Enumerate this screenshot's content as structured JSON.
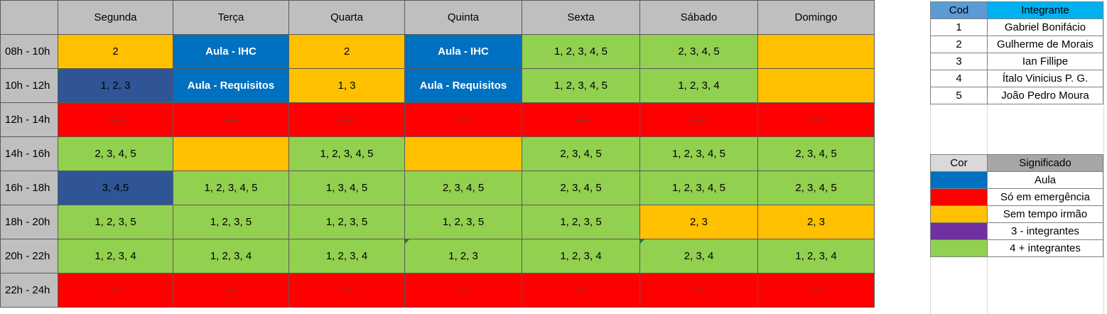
{
  "colors": {
    "header": "#bfbfbf",
    "aula": "#0070c0",
    "emergencia": "#ff0000",
    "sem_tempo": "#ffc000",
    "tres": "#7030a0",
    "quatro_mais": "#92d050",
    "dark_blue": "#2f5597"
  },
  "days": [
    "Segunda",
    "Terça",
    "Quarta",
    "Quinta",
    "Sexta",
    "Sábado",
    "Domingo"
  ],
  "rows": [
    {
      "time": "08h - 10h",
      "cells": [
        {
          "text": "2",
          "color": "#ffc000"
        },
        {
          "text": "Aula - IHC",
          "color": "#0070c0",
          "bold": true
        },
        {
          "text": "2",
          "color": "#ffc000"
        },
        {
          "text": "Aula - IHC",
          "color": "#0070c0",
          "bold": true
        },
        {
          "text": "1, 2, 3, 4, 5",
          "color": "#92d050"
        },
        {
          "text": "2, 3, 4, 5",
          "color": "#92d050"
        },
        {
          "text": "",
          "color": "#ffc000"
        }
      ]
    },
    {
      "time": "10h - 12h",
      "cells": [
        {
          "text": "1, 2, 3",
          "color": "#2f5597",
          "mark": true
        },
        {
          "text": "Aula - Requisitos",
          "color": "#0070c0",
          "bold": true
        },
        {
          "text": "1, 3",
          "color": "#ffc000"
        },
        {
          "text": "Aula - Requisitos",
          "color": "#0070c0",
          "bold": true
        },
        {
          "text": "1, 2, 3, 4, 5",
          "color": "#92d050"
        },
        {
          "text": "1, 2, 3, 4",
          "color": "#92d050"
        },
        {
          "text": "",
          "color": "#ffc000"
        }
      ]
    },
    {
      "time": "12h - 14h",
      "cells": [
        {
          "text": "---------",
          "color": "#ff0000",
          "dash": true
        },
        {
          "text": "---------",
          "color": "#ff0000",
          "dash": true
        },
        {
          "text": "---------",
          "color": "#ff0000",
          "dash": true
        },
        {
          "text": "---------",
          "color": "#ff0000",
          "dash": true
        },
        {
          "text": "---------",
          "color": "#ff0000",
          "dash": true
        },
        {
          "text": "---------",
          "color": "#ff0000",
          "dash": true
        },
        {
          "text": "---------",
          "color": "#ff0000",
          "dash": true
        }
      ]
    },
    {
      "time": "14h - 16h",
      "cells": [
        {
          "text": "2, 3, 4, 5",
          "color": "#92d050"
        },
        {
          "text": "",
          "color": "#ffc000"
        },
        {
          "text": "1, 2, 3, 4, 5",
          "color": "#92d050"
        },
        {
          "text": "",
          "color": "#ffc000"
        },
        {
          "text": "2, 3, 4, 5",
          "color": "#92d050"
        },
        {
          "text": "1, 2, 3, 4, 5",
          "color": "#92d050"
        },
        {
          "text": "2, 3, 4, 5",
          "color": "#92d050"
        }
      ]
    },
    {
      "time": "16h - 18h",
      "cells": [
        {
          "text": "3, 4,5",
          "color": "#2f5597"
        },
        {
          "text": "1, 2, 3, 4, 5",
          "color": "#92d050"
        },
        {
          "text": "1, 3, 4, 5",
          "color": "#92d050"
        },
        {
          "text": "2, 3, 4, 5",
          "color": "#92d050"
        },
        {
          "text": "2, 3, 4, 5",
          "color": "#92d050"
        },
        {
          "text": "1, 2, 3, 4, 5",
          "color": "#92d050"
        },
        {
          "text": "2, 3, 4, 5",
          "color": "#92d050"
        }
      ]
    },
    {
      "time": "18h - 20h",
      "cells": [
        {
          "text": "1, 2, 3, 5",
          "color": "#92d050"
        },
        {
          "text": "1, 2, 3, 5",
          "color": "#92d050"
        },
        {
          "text": "1, 2, 3, 5",
          "color": "#92d050"
        },
        {
          "text": "1, 2, 3, 5",
          "color": "#92d050"
        },
        {
          "text": "1, 2, 3, 5",
          "color": "#92d050"
        },
        {
          "text": "2, 3",
          "color": "#ffc000"
        },
        {
          "text": "2, 3",
          "color": "#ffc000"
        }
      ]
    },
    {
      "time": "20h - 22h",
      "cells": [
        {
          "text": "1, 2, 3, 4",
          "color": "#92d050"
        },
        {
          "text": "1, 2, 3, 4",
          "color": "#92d050"
        },
        {
          "text": "1, 2, 3, 4",
          "color": "#92d050"
        },
        {
          "text": "1, 2, 3",
          "color": "#92d050",
          "mark": true
        },
        {
          "text": "1, 2, 3, 4",
          "color": "#92d050"
        },
        {
          "text": "2, 3, 4",
          "color": "#92d050",
          "mark": true
        },
        {
          "text": "1, 2, 3, 4",
          "color": "#92d050"
        }
      ]
    },
    {
      "time": "22h - 24h",
      "cells": [
        {
          "text": "---------",
          "color": "#ff0000",
          "dash": true
        },
        {
          "text": "---------",
          "color": "#ff0000",
          "dash": true
        },
        {
          "text": "---------",
          "color": "#ff0000",
          "dash": true
        },
        {
          "text": "---------",
          "color": "#ff0000",
          "dash": true
        },
        {
          "text": "---------",
          "color": "#ff0000",
          "dash": true
        },
        {
          "text": "---------",
          "color": "#ff0000",
          "dash": true
        },
        {
          "text": "---------",
          "color": "#ff0000",
          "dash": true
        }
      ]
    }
  ],
  "members": {
    "header_cod": "Cod",
    "header_name": "Integrante",
    "header_cod_color": "#5b9bd5",
    "header_name_color": "#00b0f0",
    "items": [
      {
        "cod": "1",
        "name": "Gabriel Bonifácio"
      },
      {
        "cod": "2",
        "name": "Gulherme de Morais"
      },
      {
        "cod": "3",
        "name": "Ian Fillipe"
      },
      {
        "cod": "4",
        "name": "Ítalo Vinicius P. G."
      },
      {
        "cod": "5",
        "name": "João Pedro Moura"
      }
    ]
  },
  "legend": {
    "header_color": "Cor",
    "header_meaning": "Significado",
    "header_color_bg": "#d9d9d9",
    "header_meaning_bg": "#a6a6a6",
    "items": [
      {
        "color": "#0070c0",
        "label": "Aula"
      },
      {
        "color": "#ff0000",
        "label": "Só em emergência"
      },
      {
        "color": "#ffc000",
        "label": "Sem tempo irmão"
      },
      {
        "color": "#7030a0",
        "label": "3 - integrantes"
      },
      {
        "color": "#92d050",
        "label": "4 + integrantes"
      }
    ]
  }
}
